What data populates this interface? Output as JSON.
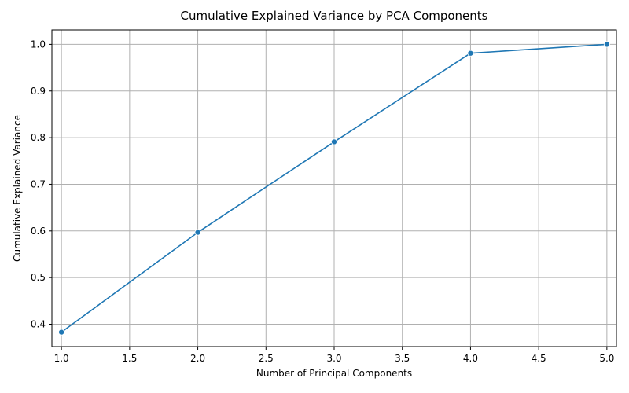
{
  "chart_data": {
    "type": "line",
    "title": "Cumulative Explained Variance by PCA Components",
    "xlabel": "Number of Principal Components",
    "ylabel": "Cumulative Explained Variance",
    "xlim": [
      0.93,
      5.07
    ],
    "ylim": [
      0.352,
      1.031
    ],
    "xticks": [
      "1.0",
      "1.5",
      "2.0",
      "2.5",
      "3.0",
      "3.5",
      "4.0",
      "4.5",
      "5.0"
    ],
    "yticks": [
      "0.4",
      "0.5",
      "0.6",
      "0.7",
      "0.8",
      "0.9",
      "1.0"
    ],
    "grid": true,
    "series": [
      {
        "x": [
          1,
          2,
          3,
          4,
          5
        ],
        "values": [
          0.383,
          0.597,
          0.791,
          0.981,
          1.0
        ],
        "color": "#1f77b4",
        "marker": "circle"
      }
    ]
  }
}
